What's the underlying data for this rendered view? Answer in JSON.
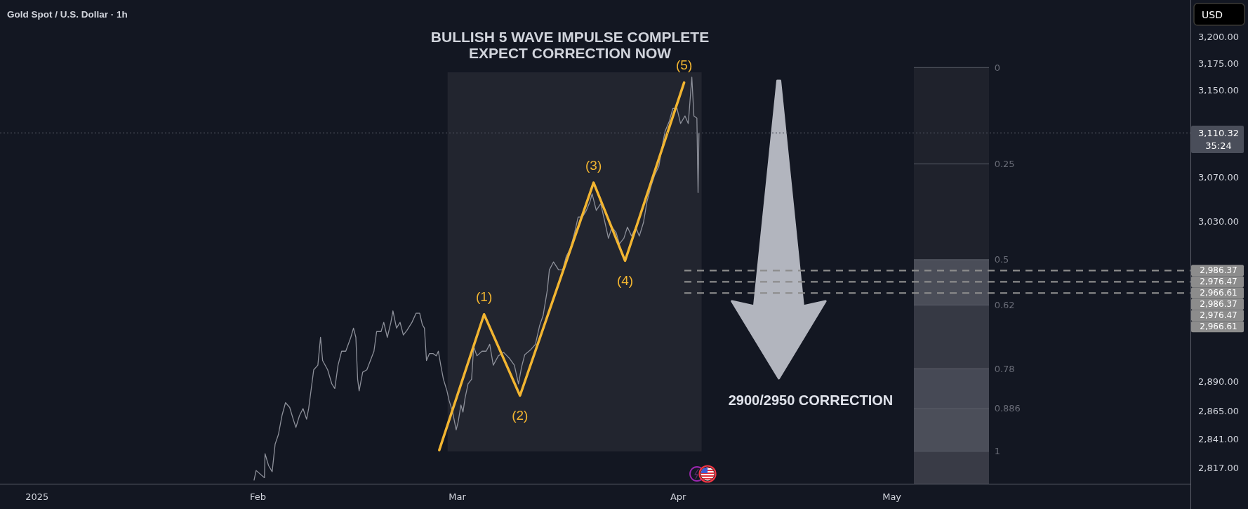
{
  "chart_data": {
    "type": "line",
    "title": "Gold Spot / U.S. Dollar · 1h",
    "xlim": [
      "2024-12-26T19:00",
      "2025-06-11T22:00"
    ],
    "xticks": [
      {
        "value": "2025-01-01",
        "label": "2025"
      },
      {
        "value": "2025-02-01",
        "label": "Feb"
      },
      {
        "value": "2025-03-01",
        "label": "Mar"
      },
      {
        "value": "2025-04-01",
        "label": "Apr"
      },
      {
        "value": "2025-05-01",
        "label": "May"
      }
    ],
    "ylim": [
      2804,
      3235
    ],
    "yticks": [
      {
        "value": 3200,
        "label": "3,200.00"
      },
      {
        "value": 3175,
        "label": "3,175.00"
      },
      {
        "value": 3150,
        "label": "3,150.00"
      },
      {
        "value": 3070,
        "label": "3,070.00"
      },
      {
        "value": 3030,
        "label": "3,030.00"
      },
      {
        "value": 2890,
        "label": "2,890.00"
      },
      {
        "value": 2865,
        "label": "2,865.00"
      },
      {
        "value": 2841,
        "label": "2,841.00"
      },
      {
        "value": 2817,
        "label": "2,817.00"
      }
    ],
    "log": "y",
    "series": [
      {
        "color": "#8d909a",
        "x": [
          "2025-01-31T11:00",
          "2025-01-31T18:00",
          "2025-02-01T22:00",
          "2025-02-02T00:00",
          "2025-02-02T12:00",
          "2025-02-03T00:00",
          "2025-02-03T10:00",
          "2025-02-03T21:00",
          "2025-02-04T09:00",
          "2025-02-04T21:00",
          "2025-02-05T11:00",
          "2025-02-05T23:00",
          "2025-02-06T08:00",
          "2025-02-06T20:00",
          "2025-02-07T08:00",
          "2025-02-07T20:00",
          "2025-02-08T03:00",
          "2025-02-08T20:00",
          "2025-02-09T10:00",
          "2025-02-09T19:00",
          "2025-02-10T02:00",
          "2025-02-10T19:00",
          "2025-02-11T09:00",
          "2025-02-11T19:00",
          "2025-02-12T06:00",
          "2025-02-12T18:00",
          "2025-02-13T08:00",
          "2025-02-14T01:00",
          "2025-02-14T10:00",
          "2025-02-14T18:00",
          "2025-02-15T00:00",
          "2025-02-15T05:00",
          "2025-02-15T17:00",
          "2025-02-16T07:00",
          "2025-02-16T19:00",
          "2025-02-17T07:00",
          "2025-02-17T16:00",
          "2025-02-18T07:00",
          "2025-02-18T16:00",
          "2025-02-19T04:00",
          "2025-02-19T16:00",
          "2025-02-19T23:00",
          "2025-02-20T11:00",
          "2025-02-20T23:00",
          "2025-02-21T10:00",
          "2025-02-21T22:00",
          "2025-02-22T15:00",
          "2025-02-23T05:00",
          "2025-02-23T17:00",
          "2025-02-24T02:00",
          "2025-02-24T09:00",
          "2025-02-24T16:00",
          "2025-02-25T02:00",
          "2025-02-25T14:00",
          "2025-02-26T01:00",
          "2025-02-26T08:00",
          "2025-02-26T16:00",
          "2025-02-27T01:00",
          "2025-02-27T13:00",
          "2025-02-27T20:00",
          "2025-02-28T08:00",
          "2025-02-28T20:00",
          "2025-03-01T03:00",
          "2025-03-01T12:00",
          "2025-03-01T19:00",
          "2025-03-02T02:00",
          "2025-03-02T12:00",
          "2025-03-03T00:00",
          "2025-03-03T07:00",
          "2025-03-03T18:00",
          "2025-03-04T11:00",
          "2025-03-05T01:00",
          "2025-03-05T13:00",
          "2025-03-06T01:00",
          "2025-03-06T18:00",
          "2025-03-07T12:00",
          "2025-03-08T07:00",
          "2025-03-09T00:00",
          "2025-03-09T14:00",
          "2025-03-10T00:00",
          "2025-03-10T11:00",
          "2025-03-11T06:00",
          "2025-03-11T23:00",
          "2025-03-12T13:00",
          "2025-03-13T01:00",
          "2025-03-13T15:00",
          "2025-03-13T22:00",
          "2025-03-14T12:00",
          "2025-03-15T05:00",
          "2025-03-15T19:00",
          "2025-03-16T07:00",
          "2025-03-16T21:00",
          "2025-03-17T11:00",
          "2025-03-17T23:00",
          "2025-03-18T13:00",
          "2025-03-19T01:00",
          "2025-03-19T15:00",
          "2025-03-19T22:00",
          "2025-03-20T12:00",
          "2025-03-21T03:00",
          "2025-03-21T15:00",
          "2025-03-22T05:00",
          "2025-03-22T17:00",
          "2025-03-23T07:00",
          "2025-03-23T18:00",
          "2025-03-24T09:00",
          "2025-03-24T21:00",
          "2025-03-25T11:00",
          "2025-03-26T01:00",
          "2025-03-26T13:00",
          "2025-03-27T03:00",
          "2025-03-27T15:00",
          "2025-03-28T05:00",
          "2025-03-28T17:00",
          "2025-03-29T07:00",
          "2025-03-29T16:00",
          "2025-03-30T04:00",
          "2025-03-30T18:00",
          "2025-03-31T06:00",
          "2025-03-31T20:00",
          "2025-04-01T08:00",
          "2025-04-01T23:00",
          "2025-04-02T10:00",
          "2025-04-02T22:00",
          "2025-04-03T05:00",
          "2025-04-03T15:00",
          "2025-04-03T19:00",
          "2025-04-03T22:00"
        ],
        "values": [
          2807,
          2815,
          2809,
          2829,
          2819,
          2814,
          2837,
          2845,
          2861,
          2872,
          2868,
          2858,
          2851,
          2861,
          2867,
          2858,
          2867,
          2900,
          2904,
          2928,
          2908,
          2900,
          2888,
          2884,
          2904,
          2916,
          2916,
          2928,
          2936,
          2928,
          2892,
          2882,
          2898,
          2900,
          2908,
          2916,
          2933,
          2933,
          2941,
          2928,
          2941,
          2951,
          2936,
          2941,
          2930,
          2934,
          2941,
          2949,
          2949,
          2939,
          2936,
          2908,
          2914,
          2914,
          2912,
          2916,
          2904,
          2892,
          2882,
          2874,
          2864,
          2849,
          2856,
          2870,
          2864,
          2876,
          2888,
          2892,
          2920,
          2912,
          2916,
          2916,
          2922,
          2904,
          2912,
          2915,
          2910,
          2904,
          2888,
          2902,
          2913,
          2917,
          2922,
          2938,
          2947,
          2969,
          2987,
          2994,
          2987,
          2987,
          2999,
          3006,
          3020,
          3034,
          3034,
          3039,
          3048,
          3055,
          3040,
          3046,
          3032,
          3015,
          3025,
          3020,
          3010,
          3015,
          3025,
          3017,
          3025,
          3017,
          3029,
          3048,
          3062,
          3072,
          3080,
          3095,
          3112,
          3121,
          3133,
          3133,
          3119,
          3126,
          3119,
          3162,
          3126,
          3124,
          3056,
          3110
        ]
      },
      {
        "color": "#f2b531",
        "x": [
          "2025-02-26T11:00",
          "2025-03-04T18:00",
          "2025-03-09T19:00",
          "2025-03-20T03:00",
          "2025-03-24T13:00",
          "2025-04-01T20:00"
        ],
        "values": [
          2832,
          2948,
          2878,
          3065,
          2995,
          3157
        ]
      }
    ],
    "bands": [
      {
        "axis": "x",
        "from": "2025-02-27T15:00",
        "to": "2025-04-04T07:00",
        "color": "#22252f"
      },
      {
        "axis": "y",
        "from": 3082,
        "to": 3171,
        "color": "#1f222c"
      },
      {
        "axis": "y",
        "from": 2996,
        "to": 3082,
        "color": "#1f222c"
      },
      {
        "axis": "y",
        "from": 2956,
        "to": 2996,
        "color": "#4a4d58"
      },
      {
        "axis": "y",
        "from": 2901,
        "to": 2956,
        "color": "#363944"
      },
      {
        "axis": "y",
        "from": 2867,
        "to": 2901,
        "color": "#464955"
      },
      {
        "axis": "y",
        "from": 2831,
        "to": 2867,
        "color": "#4b4e59"
      },
      {
        "axis": "y",
        "from": 2804,
        "to": 2831,
        "color": "#393b46"
      }
    ],
    "ref_lines": [
      {
        "axis": "y",
        "value": 3110.32,
        "label": "3,110.32\n35:24",
        "color": "#4a4e5a",
        "line_style": "dotted"
      },
      {
        "axis": "y",
        "value": 2986.37,
        "label": "2,986.37",
        "color": "#8c8c8c",
        "line_style": "dashed"
      },
      {
        "axis": "y",
        "value": 2976.47,
        "label": "2,976.47",
        "color": "#8c8c8c",
        "line_style": "dashed"
      },
      {
        "axis": "y",
        "value": 2966.61,
        "label": "2,966.61",
        "color": "#8c8c8c",
        "line_style": "dashed"
      }
    ],
    "annotations": [
      "BULLISH 5 WAVE IMPULSE COMPLETE\nEXPECT CORRECTION NOW",
      "2900/2950 CORRECTION",
      "USD",
      "2,986.37",
      "2,976.47",
      "2,966.61",
      {
        "text": "(1)",
        "x": "2025-03-04T18:00",
        "y": 2948
      },
      {
        "text": "(2)",
        "x": "2025-03-09T19:00",
        "y": 2878
      },
      {
        "text": "(3)",
        "x": "2025-03-20T03:00",
        "y": 3065
      },
      {
        "text": "(4)",
        "x": "2025-03-24T13:00",
        "y": 2995
      },
      {
        "text": "(5)",
        "x": "2025-04-01T20:00",
        "y": 3157
      },
      {
        "text": "0",
        "x": "2025-05-14T12:00",
        "y": 3171
      },
      {
        "text": "0.25",
        "x": "2025-05-14T12:00",
        "y": 3082
      },
      {
        "text": "0.5",
        "x": "2025-05-14T12:00",
        "y": 2996
      },
      {
        "text": "0.62",
        "x": "2025-05-14T12:00",
        "y": 2956
      },
      {
        "text": "0.78",
        "x": "2025-05-14T12:00",
        "y": 2901
      },
      {
        "text": "0.886",
        "x": "2025-05-14T12:00",
        "y": 2867
      },
      {
        "text": "1",
        "x": "2025-05-14T12:00",
        "y": 2831
      }
    ]
  }
}
